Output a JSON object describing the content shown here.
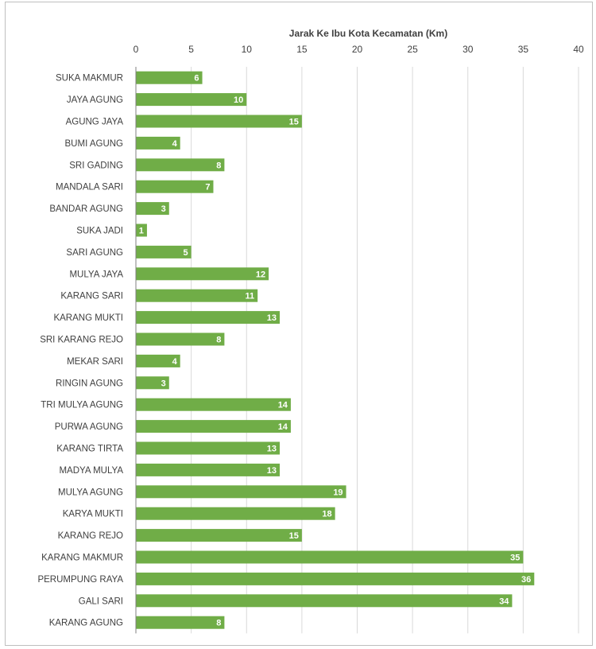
{
  "colors": {
    "bar": "#70ad47",
    "grid": "#d9d9d9",
    "axis": "#808080",
    "text": "#404040",
    "label": "#ffffff"
  },
  "chart_data": {
    "type": "bar",
    "orientation": "horizontal",
    "title": "",
    "xlabel": "Jarak Ke Ibu Kota Kecamatan (Km)",
    "ylabel": "",
    "xlim": [
      0,
      40
    ],
    "x_ticks": [
      "0",
      "5",
      "10",
      "15",
      "20",
      "25",
      "30",
      "35",
      "40"
    ],
    "x_axis_position": "top",
    "grid": true,
    "legend": "none",
    "categories": [
      "SUKA MAKMUR",
      "JAYA AGUNG",
      "AGUNG JAYA",
      "BUMI AGUNG",
      "SRI GADING",
      "MANDALA SARI",
      "BANDAR AGUNG",
      "SUKA JADI",
      "SARI AGUNG",
      "MULYA JAYA",
      "KARANG SARI",
      "KARANG MUKTI",
      "SRI KARANG REJO",
      "MEKAR SARI",
      "RINGIN AGUNG",
      "TRI MULYA AGUNG",
      "PURWA AGUNG",
      "KARANG  TIRTA",
      "MADYA MULYA",
      "MULYA AGUNG",
      "KARYA MUKTI",
      "KARANG REJO",
      "KARANG MAKMUR",
      "PERUMPUNG RAYA",
      "GALI SARI",
      "KARANG AGUNG"
    ],
    "values": [
      6,
      10,
      15,
      4,
      8,
      7,
      3,
      1,
      5,
      12,
      11,
      13,
      8,
      4,
      3,
      14,
      14,
      13,
      13,
      19,
      18,
      15,
      35,
      36,
      34,
      8
    ],
    "data_labels": [
      "6",
      "10",
      "15",
      "4",
      "8",
      "7",
      "3",
      "1",
      "5",
      "12",
      "11",
      "13",
      "8",
      "4",
      "3",
      "14",
      "14",
      "13",
      "13",
      "19",
      "18",
      "15",
      "35",
      "36",
      "34",
      "8"
    ]
  }
}
